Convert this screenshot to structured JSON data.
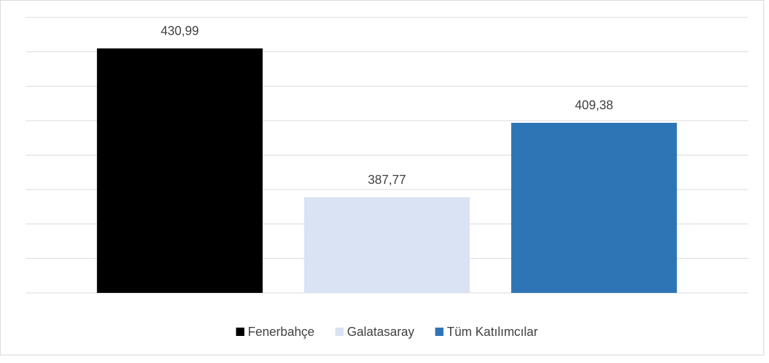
{
  "chart_data": {
    "type": "bar",
    "categories": [
      null
    ],
    "series": [
      {
        "name": "Fenerbahçe",
        "color": "#000000",
        "values": [
          430.99
        ],
        "value_labels": [
          "430,99"
        ]
      },
      {
        "name": "Galatasaray",
        "color": "#dae3f3",
        "values": [
          387.77
        ],
        "value_labels": [
          "387,77"
        ]
      },
      {
        "name": "Tüm Katılımcılar",
        "color": "#2e75b6",
        "values": [
          409.38
        ],
        "value_labels": [
          "409,38"
        ]
      }
    ],
    "ylim": [
      360,
      440
    ],
    "yticks": [
      360,
      370,
      380,
      390,
      400,
      410,
      420,
      430,
      440
    ],
    "grid": true,
    "legend": "bottom"
  }
}
